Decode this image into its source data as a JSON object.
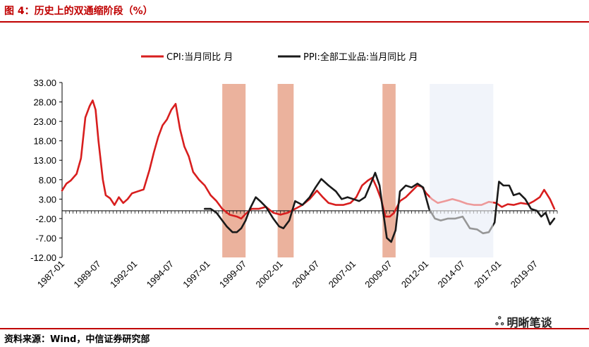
{
  "header": {
    "title": "图 4：历史上的双通缩阶段（%）"
  },
  "footer": {
    "source": "资料来源：Wind，中信证券研究部"
  },
  "watermark": {
    "text": "明晰笔谈"
  },
  "colors": {
    "accent": "#c00000",
    "cpi": "#d81e1e",
    "ppi": "#1a1a1a",
    "band_red": "#e8a48c",
    "band_blue": "#dfe6f4"
  },
  "chart_data": {
    "type": "line",
    "title": "",
    "xlabel": "",
    "ylabel": "",
    "ylim": [
      -12,
      33
    ],
    "yticks": [
      33,
      28,
      23,
      18,
      13,
      8,
      3,
      -2,
      -7,
      -12
    ],
    "ytick_labels": [
      "33.00",
      "28.00",
      "23.00",
      "18.00",
      "13.00",
      "8.00",
      "3.00",
      "-2.00",
      "-7.00",
      "-12.00"
    ],
    "xticks": [
      "1987-01",
      "1989-07",
      "1992-01",
      "1994-07",
      "1997-01",
      "1999-07",
      "2002-01",
      "2004-07",
      "2007-01",
      "2009-07",
      "2012-01",
      "2014-07",
      "2017-01",
      "2019-07"
    ],
    "xlim": [
      1987.0,
      2021.0
    ],
    "legend": {
      "placement": "top"
    },
    "shaded_periods": [
      {
        "start": 1998.0,
        "end": 1999.6,
        "color": "band_red"
      },
      {
        "start": 2001.8,
        "end": 2002.9,
        "color": "band_red"
      },
      {
        "start": 2009.0,
        "end": 2009.9,
        "color": "band_red"
      },
      {
        "start": 2012.25,
        "end": 2016.6,
        "color": "band_blue"
      }
    ],
    "series": [
      {
        "name": "CPI:当月同比 月",
        "color": "cpi",
        "x": [
          1987.0,
          1987.3,
          1987.6,
          1988.0,
          1988.3,
          1988.6,
          1988.9,
          1989.1,
          1989.3,
          1989.5,
          1989.8,
          1990.0,
          1990.3,
          1990.6,
          1990.9,
          1991.2,
          1991.5,
          1991.8,
          1992.2,
          1992.6,
          1993.0,
          1993.3,
          1993.6,
          1993.9,
          1994.2,
          1994.5,
          1994.8,
          1995.1,
          1995.4,
          1995.7,
          1996.0,
          1996.4,
          1996.8,
          1997.2,
          1997.6,
          1998.0,
          1998.5,
          1999.0,
          1999.3,
          1999.6,
          2000.0,
          2000.5,
          2001.0,
          2001.5,
          2002.0,
          2002.5,
          2003.0,
          2003.5,
          2004.0,
          2004.5,
          2004.9,
          2005.3,
          2005.8,
          2006.3,
          2006.8,
          2007.2,
          2007.6,
          2008.0,
          2008.3,
          2008.6,
          2008.9,
          2009.2,
          2009.5,
          2009.8,
          2010.2,
          2010.6,
          2011.0,
          2011.4,
          2011.7,
          2012.0,
          2012.4,
          2012.8,
          2013.3,
          2013.8,
          2014.3,
          2014.8,
          2015.3,
          2015.8,
          2016.3,
          2016.8,
          2017.2,
          2017.6,
          2018.0,
          2018.5,
          2019.0,
          2019.4,
          2019.8,
          2020.1,
          2020.5,
          2020.8
        ],
        "values": [
          5.2,
          7.0,
          7.8,
          9.5,
          13.5,
          24.0,
          27.0,
          28.4,
          26.0,
          18.0,
          8.0,
          4.0,
          3.2,
          1.5,
          3.5,
          2.0,
          3.0,
          4.5,
          5.0,
          5.5,
          10.5,
          15.0,
          19.0,
          22.0,
          23.5,
          26.0,
          27.5,
          21.0,
          16.5,
          14.0,
          10.0,
          8.0,
          6.5,
          4.0,
          2.5,
          0.5,
          -1.0,
          -1.5,
          -2.0,
          -0.8,
          0.5,
          0.5,
          1.0,
          -0.5,
          -1.0,
          -0.5,
          0.5,
          1.5,
          3.0,
          5.2,
          3.5,
          2.0,
          1.5,
          1.5,
          2.0,
          3.5,
          6.5,
          7.8,
          8.5,
          6.0,
          3.0,
          -1.5,
          -1.5,
          -0.5,
          2.5,
          3.5,
          5.0,
          6.5,
          6.2,
          4.5,
          3.0,
          2.0,
          2.5,
          3.0,
          2.5,
          1.8,
          1.5,
          1.5,
          2.3,
          2.0,
          1.0,
          1.7,
          1.5,
          2.0,
          1.7,
          2.5,
          3.5,
          5.4,
          3.0,
          0.5
        ]
      },
      {
        "name": "PPI:全部工业品:当月同比 月",
        "color": "ppi",
        "x": [
          1996.8,
          1997.2,
          1997.6,
          1998.0,
          1998.3,
          1998.7,
          1999.0,
          1999.3,
          1999.6,
          1999.9,
          2000.3,
          2000.6,
          2001.0,
          2001.5,
          2001.9,
          2002.2,
          2002.6,
          2003.0,
          2003.5,
          2004.0,
          2004.4,
          2004.8,
          2005.3,
          2005.8,
          2006.2,
          2006.6,
          2007.0,
          2007.4,
          2007.8,
          2008.2,
          2008.5,
          2008.8,
          2009.0,
          2009.3,
          2009.6,
          2009.9,
          2010.2,
          2010.6,
          2011.0,
          2011.4,
          2011.8,
          2012.2,
          2012.6,
          2013.0,
          2013.5,
          2014.0,
          2014.5,
          2015.0,
          2015.5,
          2015.9,
          2016.3,
          2016.7,
          2017.0,
          2017.3,
          2017.7,
          2018.0,
          2018.4,
          2018.8,
          2019.2,
          2019.6,
          2019.9,
          2020.2,
          2020.5,
          2020.8
        ],
        "values": [
          0.5,
          0.5,
          -0.5,
          -2.5,
          -4.0,
          -5.5,
          -5.5,
          -4.5,
          -2.5,
          0.5,
          3.5,
          2.5,
          1.0,
          -2.0,
          -4.0,
          -4.5,
          -2.5,
          2.5,
          1.5,
          3.5,
          6.0,
          8.2,
          6.5,
          5.0,
          3.0,
          3.5,
          3.0,
          2.5,
          3.5,
          7.0,
          9.8,
          6.5,
          1.0,
          -7.0,
          -8.0,
          -5.0,
          5.0,
          6.5,
          6.0,
          7.0,
          6.0,
          0.5,
          -2.0,
          -2.5,
          -2.0,
          -2.0,
          -1.5,
          -4.5,
          -4.8,
          -5.8,
          -5.5,
          -3.0,
          7.5,
          6.5,
          6.5,
          4.0,
          4.5,
          3.0,
          0.5,
          0.0,
          -1.5,
          -0.5,
          -3.5,
          -2.0
        ]
      }
    ]
  }
}
